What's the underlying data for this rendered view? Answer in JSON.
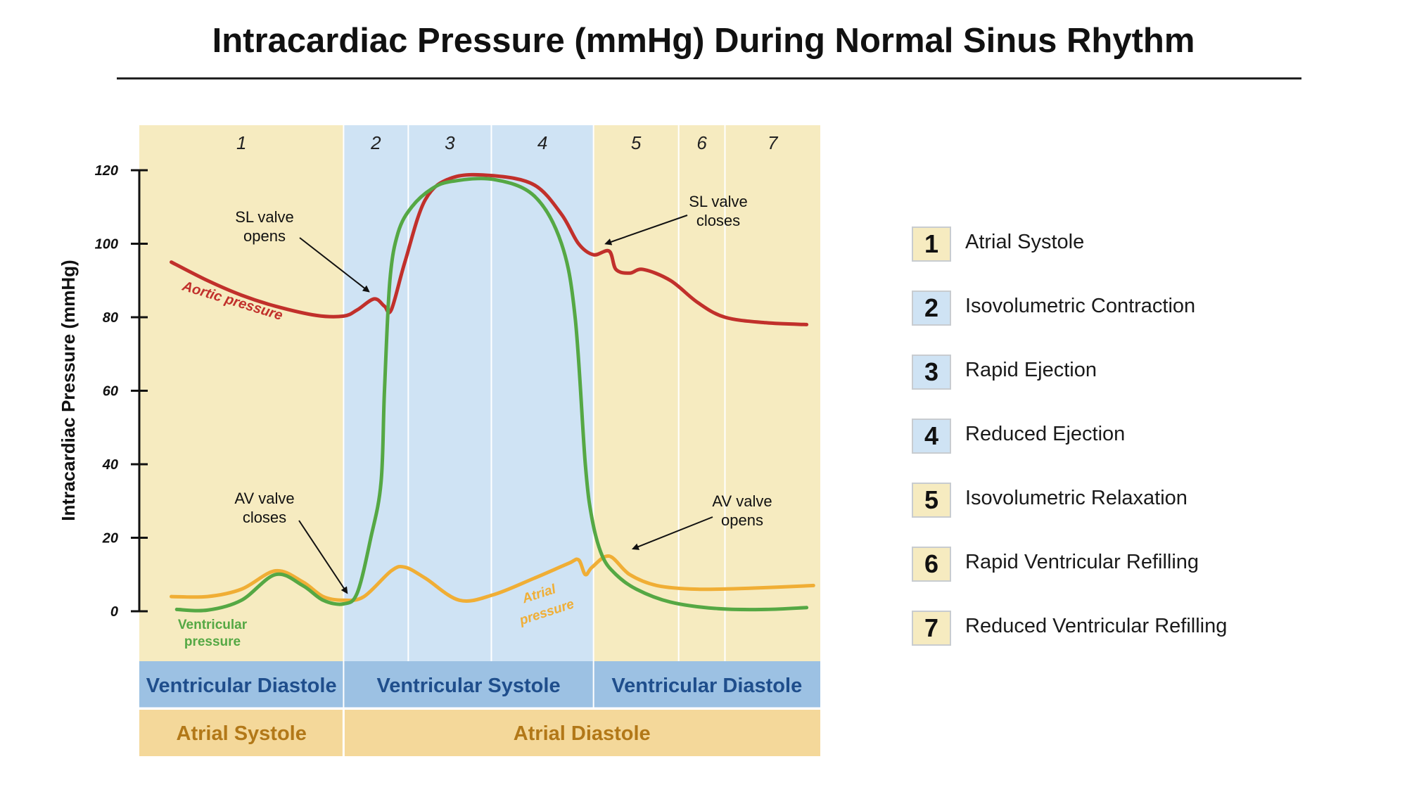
{
  "title": "Intracardiac Pressure (mmHg) During Normal Sinus Rhythm",
  "colors": {
    "atrial_systole_bg": "#f6ebc0",
    "ventricular_systole_bg": "#cfe3f4",
    "aortic": "#c1302b",
    "ventricular": "#55a844",
    "atrial": "#f0ae35",
    "ventricular_band": "#9cc1e3",
    "ventricular_band_text": "#1f4e8c",
    "atrial_band": "#f4d89a",
    "atrial_band_text": "#b27818"
  },
  "chart_data": {
    "type": "line",
    "xlabel": "",
    "ylabel": "Intracardiac Pressure (mmHg)",
    "ylim": [
      0,
      120
    ],
    "yticks": [
      "0",
      "20",
      "40",
      "60",
      "80",
      "100",
      "120"
    ],
    "grid": false,
    "phases": [
      {
        "number": "1",
        "start": 0.0,
        "end": 0.3
      },
      {
        "number": "2",
        "start": 0.3,
        "end": 0.395
      },
      {
        "number": "3",
        "start": 0.395,
        "end": 0.517
      },
      {
        "number": "4",
        "start": 0.517,
        "end": 0.667
      },
      {
        "number": "5",
        "start": 0.667,
        "end": 0.792
      },
      {
        "number": "6",
        "start": 0.792,
        "end": 0.86
      },
      {
        "number": "7",
        "start": 0.86,
        "end": 1.0
      }
    ],
    "series": [
      {
        "name": "Aortic pressure",
        "color": "#c1302b",
        "x": [
          0.047,
          0.1,
          0.15,
          0.2,
          0.26,
          0.3,
          0.32,
          0.345,
          0.36,
          0.37,
          0.39,
          0.42,
          0.46,
          0.52,
          0.58,
          0.62,
          0.645,
          0.667,
          0.69,
          0.7,
          0.72,
          0.74,
          0.78,
          0.82,
          0.86,
          0.92,
          0.98
        ],
        "y": [
          95,
          90,
          86,
          83,
          80.5,
          80.3,
          82,
          85,
          83,
          82,
          95,
          112,
          118,
          118.5,
          116,
          108,
          100,
          97,
          98,
          93,
          92,
          93,
          90,
          84,
          80,
          78.5,
          78
        ]
      },
      {
        "name": "Ventricular pressure",
        "color": "#55a844",
        "x": [
          0.055,
          0.1,
          0.15,
          0.2,
          0.24,
          0.27,
          0.3,
          0.32,
          0.34,
          0.355,
          0.36,
          0.368,
          0.38,
          0.4,
          0.43,
          0.46,
          0.52,
          0.58,
          0.62,
          0.64,
          0.655,
          0.665,
          0.68,
          0.7,
          0.73,
          0.78,
          0.85,
          0.92,
          0.98
        ],
        "y": [
          0.5,
          0.3,
          3,
          10,
          7,
          3,
          2,
          5,
          20,
          35,
          60,
          90,
          103,
          110,
          115,
          117,
          117.5,
          113,
          100,
          80,
          40,
          25,
          15,
          10,
          6,
          2.5,
          0.7,
          0.5,
          1
        ]
      },
      {
        "name": "Atrial pressure",
        "color": "#f0ae35",
        "x": [
          0.047,
          0.1,
          0.15,
          0.2,
          0.24,
          0.27,
          0.3,
          0.33,
          0.37,
          0.39,
          0.42,
          0.47,
          0.52,
          0.58,
          0.63,
          0.645,
          0.655,
          0.665,
          0.69,
          0.72,
          0.76,
          0.82,
          0.9,
          0.99
        ],
        "y": [
          4,
          4,
          6,
          11,
          8,
          4,
          3,
          4,
          11,
          12,
          9,
          3,
          4.5,
          9,
          13,
          14,
          10,
          12,
          15,
          10,
          7,
          6,
          6.3,
          7
        ]
      }
    ],
    "curve_labels": [
      {
        "text": "Aortic pressure",
        "series": "Aortic pressure"
      },
      {
        "text": "Ventricular",
        "series": "Ventricular pressure"
      },
      {
        "text": "pressure",
        "series": "Ventricular pressure"
      },
      {
        "text": "Atrial",
        "series": "Atrial pressure"
      },
      {
        "text": "pressure",
        "series": "Atrial pressure"
      }
    ],
    "annotations": [
      {
        "lines": [
          "SL valve",
          "opens"
        ],
        "target_x": 0.337,
        "target_y": 87
      },
      {
        "lines": [
          "SL valve",
          "closes"
        ],
        "target_x": 0.685,
        "target_y": 100
      },
      {
        "lines": [
          "AV valve",
          "closes"
        ],
        "target_x": 0.305,
        "target_y": 5
      },
      {
        "lines": [
          "AV valve",
          "opens"
        ],
        "target_x": 0.725,
        "target_y": 17
      }
    ],
    "bands": {
      "ventricular": [
        {
          "label": "Ventricular Diastole",
          "start": 0.0,
          "end": 0.3
        },
        {
          "label": "Ventricular Systole",
          "start": 0.3,
          "end": 0.667
        },
        {
          "label": "Ventricular Diastole",
          "start": 0.667,
          "end": 1.0
        }
      ],
      "atrial": [
        {
          "label": "Atrial Systole",
          "start": 0.0,
          "end": 0.3
        },
        {
          "label": "Atrial Diastole",
          "start": 0.3,
          "end": 1.0
        }
      ]
    }
  },
  "legend": [
    {
      "number": "1",
      "label": "Atrial Systole",
      "color": "#f6ebc0"
    },
    {
      "number": "2",
      "label": "Isovolumetric Contraction",
      "color": "#cfe3f4"
    },
    {
      "number": "3",
      "label": "Rapid Ejection",
      "color": "#cfe3f4"
    },
    {
      "number": "4",
      "label": "Reduced Ejection",
      "color": "#cfe3f4"
    },
    {
      "number": "5",
      "label": "Isovolumetric Relaxation",
      "color": "#f6ebc0"
    },
    {
      "number": "6",
      "label": "Rapid Ventricular Refilling",
      "color": "#f6ebc0"
    },
    {
      "number": "7",
      "label": "Reduced Ventricular Refilling",
      "color": "#f6ebc0"
    }
  ]
}
